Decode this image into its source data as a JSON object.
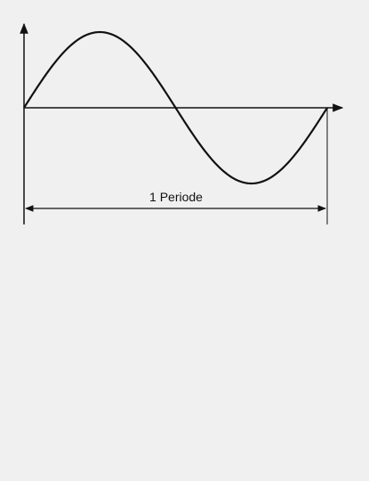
{
  "diagram": {
    "period_label": "1 Periode",
    "curve_type": "sine",
    "periods_shown": 1,
    "amplitude": 1,
    "colors": {
      "background": "#f0f0f0",
      "line": "#111111"
    }
  }
}
